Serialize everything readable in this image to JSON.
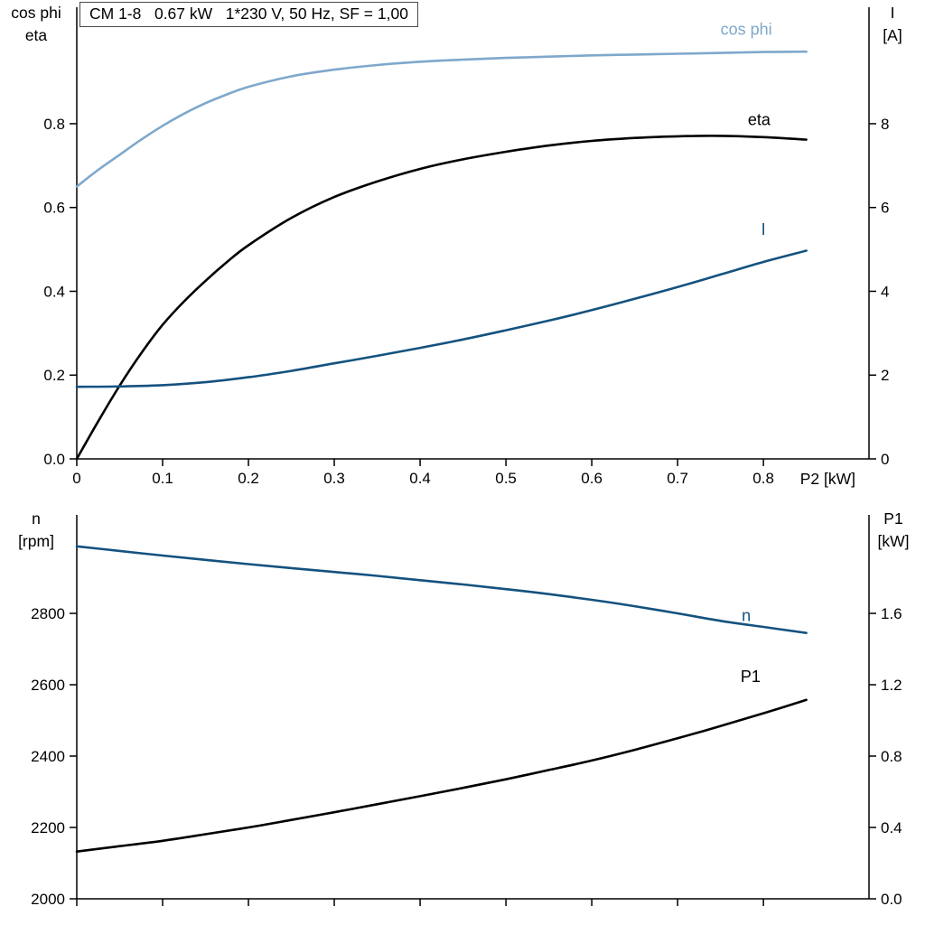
{
  "page": {
    "background": "#ffffff"
  },
  "chart_data": [
    {
      "id": "top",
      "type": "line",
      "title_box": "CM 1-8   0.67 kW   1*230 V, 50 Hz, SF = 1,00",
      "axis_color": "#000000",
      "x_axis": {
        "label": "P2 [kW]",
        "min": 0,
        "max": 0.923,
        "ticks": [
          0,
          0.1,
          0.2,
          0.3,
          0.4,
          0.5,
          0.6,
          0.7,
          0.8
        ],
        "tick_labels": [
          "0",
          "0.1",
          "0.2",
          "0.3",
          "0.4",
          "0.5",
          "0.6",
          "0.7",
          "0.8"
        ]
      },
      "left_axis": {
        "label_lines": [
          "cos phi",
          "eta"
        ],
        "min": 0,
        "max": 1.078,
        "ticks": [
          0,
          0.2,
          0.4,
          0.6,
          0.8
        ],
        "tick_labels": [
          "0.0",
          "0.2",
          "0.4",
          "0.6",
          "0.8"
        ]
      },
      "right_axis": {
        "label_lines": [
          "I",
          "[A]"
        ],
        "min": 0,
        "max": 10.78,
        "ticks": [
          0,
          2,
          4,
          6,
          8
        ],
        "tick_labels": [
          "0",
          "2",
          "4",
          "6",
          "8"
        ]
      },
      "series": [
        {
          "name": "cos phi",
          "axis": "left",
          "color": "#7fa8cc",
          "width": 2.6,
          "label": {
            "text": "cos phi",
            "x": 0.78,
            "y": 1.012
          },
          "points": [
            [
              0,
              0.65
            ],
            [
              0.025,
              0.69
            ],
            [
              0.05,
              0.726
            ],
            [
              0.075,
              0.762
            ],
            [
              0.1,
              0.795
            ],
            [
              0.125,
              0.824
            ],
            [
              0.15,
              0.849
            ],
            [
              0.175,
              0.87
            ],
            [
              0.2,
              0.888
            ],
            [
              0.25,
              0.913
            ],
            [
              0.3,
              0.929
            ],
            [
              0.35,
              0.94
            ],
            [
              0.4,
              0.948
            ],
            [
              0.45,
              0.953
            ],
            [
              0.5,
              0.957
            ],
            [
              0.55,
              0.96
            ],
            [
              0.6,
              0.963
            ],
            [
              0.65,
              0.965
            ],
            [
              0.7,
              0.967
            ],
            [
              0.75,
              0.969
            ],
            [
              0.8,
              0.971
            ],
            [
              0.85,
              0.972
            ]
          ]
        },
        {
          "name": "eta",
          "axis": "left",
          "color": "#000000",
          "width": 2.6,
          "label": {
            "text": "eta",
            "x": 0.795,
            "y": 0.797
          },
          "points": [
            [
              0,
              0.0
            ],
            [
              0.025,
              0.09
            ],
            [
              0.05,
              0.175
            ],
            [
              0.075,
              0.252
            ],
            [
              0.1,
              0.32
            ],
            [
              0.125,
              0.376
            ],
            [
              0.15,
              0.425
            ],
            [
              0.175,
              0.47
            ],
            [
              0.2,
              0.51
            ],
            [
              0.25,
              0.575
            ],
            [
              0.3,
              0.625
            ],
            [
              0.35,
              0.662
            ],
            [
              0.4,
              0.692
            ],
            [
              0.45,
              0.715
            ],
            [
              0.5,
              0.733
            ],
            [
              0.55,
              0.748
            ],
            [
              0.6,
              0.759
            ],
            [
              0.65,
              0.766
            ],
            [
              0.7,
              0.77
            ],
            [
              0.75,
              0.771
            ],
            [
              0.8,
              0.768
            ],
            [
              0.85,
              0.762
            ]
          ]
        },
        {
          "name": "I",
          "axis": "right",
          "color": "#14527f",
          "width": 2.6,
          "label": {
            "text": "I",
            "x": 0.8,
            "y": 5.35
          },
          "points": [
            [
              0,
              1.72
            ],
            [
              0.05,
              1.73
            ],
            [
              0.1,
              1.76
            ],
            [
              0.15,
              1.83
            ],
            [
              0.2,
              1.95
            ],
            [
              0.25,
              2.1
            ],
            [
              0.3,
              2.28
            ],
            [
              0.35,
              2.46
            ],
            [
              0.4,
              2.65
            ],
            [
              0.45,
              2.85
            ],
            [
              0.5,
              3.07
            ],
            [
              0.55,
              3.3
            ],
            [
              0.6,
              3.55
            ],
            [
              0.65,
              3.82
            ],
            [
              0.7,
              4.1
            ],
            [
              0.75,
              4.4
            ],
            [
              0.8,
              4.7
            ],
            [
              0.85,
              4.97
            ]
          ]
        }
      ]
    },
    {
      "id": "bottom",
      "type": "line",
      "axis_color": "#000000",
      "x_axis": {
        "label": "",
        "min": 0,
        "max": 0.923,
        "ticks": [
          0,
          0.1,
          0.2,
          0.3,
          0.4,
          0.5,
          0.6,
          0.7,
          0.8
        ],
        "tick_labels": []
      },
      "left_axis": {
        "label_lines": [
          "n",
          "[rpm]"
        ],
        "min": 2000,
        "max": 3076,
        "ticks": [
          2000,
          2200,
          2400,
          2600,
          2800
        ],
        "tick_labels": [
          "2000",
          "2200",
          "2400",
          "2600",
          "2800"
        ]
      },
      "right_axis": {
        "label_lines": [
          "P1",
          "[kW]"
        ],
        "min": 0,
        "max": 2.152,
        "ticks": [
          0,
          0.4,
          0.8,
          1.2,
          1.6
        ],
        "tick_labels": [
          "0.0",
          "0.4",
          "0.8",
          "1.2",
          "1.6"
        ]
      },
      "series": [
        {
          "name": "n",
          "axis": "left",
          "color": "#14527f",
          "width": 2.6,
          "label": {
            "text": "n",
            "x": 0.78,
            "y": 2778
          },
          "points": [
            [
              0,
              2988
            ],
            [
              0.05,
              2975
            ],
            [
              0.1,
              2962
            ],
            [
              0.15,
              2950
            ],
            [
              0.2,
              2938
            ],
            [
              0.25,
              2927
            ],
            [
              0.3,
              2916
            ],
            [
              0.35,
              2905
            ],
            [
              0.4,
              2893
            ],
            [
              0.45,
              2881
            ],
            [
              0.5,
              2868
            ],
            [
              0.55,
              2854
            ],
            [
              0.6,
              2838
            ],
            [
              0.65,
              2820
            ],
            [
              0.7,
              2800
            ],
            [
              0.75,
              2779
            ],
            [
              0.8,
              2762
            ],
            [
              0.85,
              2745
            ]
          ]
        },
        {
          "name": "P1",
          "axis": "right",
          "color": "#000000",
          "width": 2.6,
          "label": {
            "text": "P1",
            "x": 0.785,
            "y": 1.215
          },
          "points": [
            [
              0,
              0.265
            ],
            [
              0.05,
              0.295
            ],
            [
              0.1,
              0.325
            ],
            [
              0.15,
              0.362
            ],
            [
              0.2,
              0.4
            ],
            [
              0.25,
              0.442
            ],
            [
              0.3,
              0.485
            ],
            [
              0.35,
              0.53
            ],
            [
              0.4,
              0.575
            ],
            [
              0.45,
              0.622
            ],
            [
              0.5,
              0.67
            ],
            [
              0.55,
              0.722
            ],
            [
              0.6,
              0.775
            ],
            [
              0.65,
              0.835
            ],
            [
              0.7,
              0.9
            ],
            [
              0.75,
              0.968
            ],
            [
              0.8,
              1.04
            ],
            [
              0.85,
              1.115
            ]
          ]
        }
      ]
    }
  ]
}
